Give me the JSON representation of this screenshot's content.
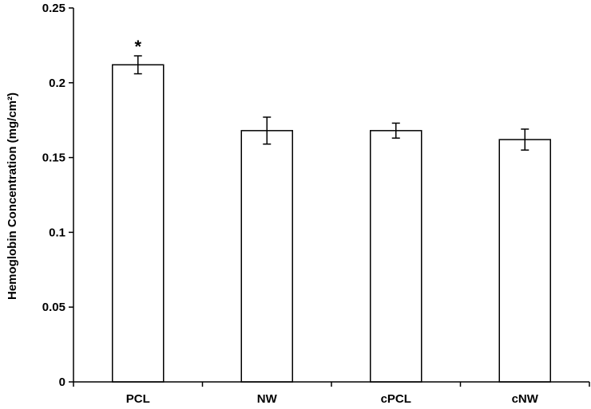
{
  "chart_data": {
    "type": "bar",
    "title": "",
    "xlabel": "",
    "ylabel": "Hemoglobin Concentration (mg/cm²)",
    "categories": [
      "PCL",
      "NW",
      "cPCL",
      "cNW"
    ],
    "values": [
      0.212,
      0.168,
      0.168,
      0.162
    ],
    "errors": [
      0.006,
      0.009,
      0.005,
      0.007
    ],
    "annotations": [
      "*",
      "",
      "",
      ""
    ],
    "ylim": [
      0,
      0.25
    ],
    "yticks": [
      0,
      0.05,
      0.1,
      0.15,
      0.2,
      0.25
    ],
    "ytick_labels": [
      "0",
      "0.05",
      "0.1",
      "0.15",
      "0.2",
      "0.25"
    ],
    "grid": false,
    "legend": "none",
    "colors": {
      "bar_fill": "#ffffff",
      "bar_stroke": "#000000",
      "axis": "#000000"
    }
  }
}
